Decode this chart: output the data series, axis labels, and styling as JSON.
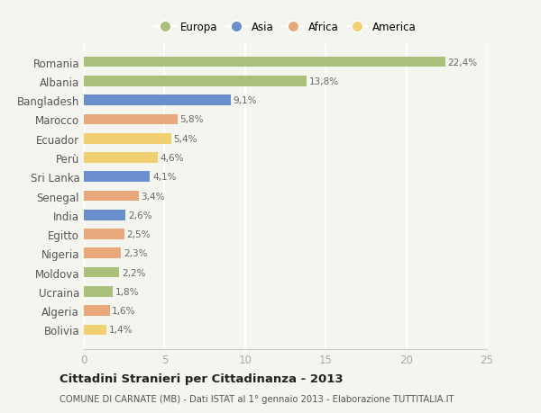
{
  "countries": [
    "Romania",
    "Albania",
    "Bangladesh",
    "Marocco",
    "Ecuador",
    "Perù",
    "Sri Lanka",
    "Senegal",
    "India",
    "Egitto",
    "Nigeria",
    "Moldova",
    "Ucraina",
    "Algeria",
    "Bolivia"
  ],
  "values": [
    22.4,
    13.8,
    9.1,
    5.8,
    5.4,
    4.6,
    4.1,
    3.4,
    2.6,
    2.5,
    2.3,
    2.2,
    1.8,
    1.6,
    1.4
  ],
  "labels": [
    "22,4%",
    "13,8%",
    "9,1%",
    "5,8%",
    "5,4%",
    "4,6%",
    "4,1%",
    "3,4%",
    "2,6%",
    "2,5%",
    "2,3%",
    "2,2%",
    "1,8%",
    "1,6%",
    "1,4%"
  ],
  "continents": [
    "Europa",
    "Europa",
    "Asia",
    "Africa",
    "America",
    "America",
    "Asia",
    "Africa",
    "Asia",
    "Africa",
    "Africa",
    "Europa",
    "Europa",
    "Africa",
    "America"
  ],
  "colors": {
    "Europa": "#a8c07a",
    "Asia": "#6b8fcc",
    "Africa": "#e8a87c",
    "America": "#f0d070"
  },
  "legend_order": [
    "Europa",
    "Asia",
    "Africa",
    "America"
  ],
  "xlim": [
    0,
    25
  ],
  "xticks": [
    0,
    5,
    10,
    15,
    20,
    25
  ],
  "title": "Cittadini Stranieri per Cittadinanza - 2013",
  "subtitle": "COMUNE DI CARNATE (MB) - Dati ISTAT al 1° gennaio 2013 - Elaborazione TUTTITALIA.IT",
  "bg_color": "#f5f5f0",
  "grid_color": "#ffffff",
  "bar_height": 0.55
}
